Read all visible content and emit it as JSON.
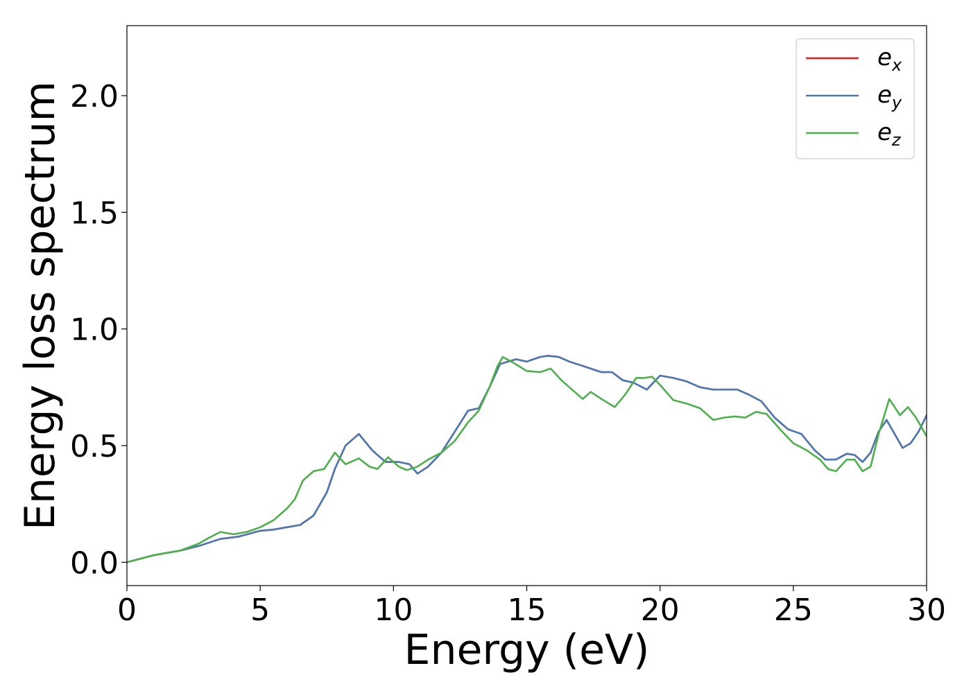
{
  "chart_data": {
    "type": "line",
    "xlabel": "Energy (eV)",
    "ylabel": "Energy loss spectrum",
    "xlim": [
      0,
      30
    ],
    "ylim": [
      -0.1,
      2.3
    ],
    "xticks": [
      0,
      5,
      10,
      15,
      20,
      25,
      30
    ],
    "xtick_labels": [
      "0",
      "5",
      "10",
      "15",
      "20",
      "25",
      "30"
    ],
    "yticks": [
      0.0,
      0.5,
      1.0,
      1.5,
      2.0
    ],
    "ytick_labels": [
      "0.0",
      "0.5",
      "1.0",
      "1.5",
      "2.0"
    ],
    "grid": false,
    "legend_position": "top-right",
    "series": [
      {
        "name": "e_x",
        "label_base": "e",
        "label_sub": "x",
        "color": "#e41a1c",
        "x": [
          0,
          1,
          2,
          2.7,
          3.5,
          4.2,
          5,
          5.5,
          6,
          6.5,
          7,
          7.5,
          7.8,
          8.2,
          8.7,
          9.2,
          9.7,
          10.2,
          10.6,
          10.9,
          11.3,
          11.8,
          12.3,
          12.8,
          13.2,
          13.6,
          14,
          14.3,
          14.6,
          15,
          15.5,
          15.8,
          16.2,
          16.6,
          17,
          17.4,
          17.8,
          18.2,
          18.6,
          19,
          19.5,
          20,
          20.5,
          21,
          21.5,
          22,
          22.5,
          22.9,
          23.3,
          23.8,
          24.3,
          24.8,
          25.3,
          25.8,
          26.2,
          26.6,
          27,
          27.3,
          27.6,
          27.9,
          28.2,
          28.5,
          28.8,
          29.1,
          29.4,
          29.7,
          30
        ],
        "y": [
          0,
          0.03,
          0.05,
          0.07,
          0.1,
          0.11,
          0.135,
          0.14,
          0.15,
          0.16,
          0.2,
          0.3,
          0.4,
          0.5,
          0.55,
          0.48,
          0.43,
          0.43,
          0.42,
          0.38,
          0.41,
          0.47,
          0.56,
          0.65,
          0.66,
          0.75,
          0.85,
          0.86,
          0.87,
          0.86,
          0.88,
          0.885,
          0.88,
          0.86,
          0.845,
          0.83,
          0.815,
          0.815,
          0.78,
          0.77,
          0.74,
          0.8,
          0.79,
          0.775,
          0.75,
          0.74,
          0.74,
          0.74,
          0.72,
          0.69,
          0.62,
          0.57,
          0.55,
          0.48,
          0.44,
          0.44,
          0.465,
          0.46,
          0.43,
          0.47,
          0.56,
          0.61,
          0.55,
          0.49,
          0.51,
          0.56,
          0.63
        ]
      },
      {
        "name": "e_y",
        "label_base": "e",
        "label_sub": "y",
        "color": "#4a7ab5",
        "x": [
          0,
          1,
          2,
          2.7,
          3.5,
          4.2,
          5,
          5.5,
          6,
          6.5,
          7,
          7.5,
          7.8,
          8.2,
          8.7,
          9.2,
          9.7,
          10.2,
          10.6,
          10.9,
          11.3,
          11.8,
          12.3,
          12.8,
          13.2,
          13.6,
          14,
          14.3,
          14.6,
          15,
          15.5,
          15.8,
          16.2,
          16.6,
          17,
          17.4,
          17.8,
          18.2,
          18.6,
          19,
          19.5,
          20,
          20.5,
          21,
          21.5,
          22,
          22.5,
          22.9,
          23.3,
          23.8,
          24.3,
          24.8,
          25.3,
          25.8,
          26.2,
          26.6,
          27,
          27.3,
          27.6,
          27.9,
          28.2,
          28.5,
          28.8,
          29.1,
          29.4,
          29.7,
          30
        ],
        "y": [
          0,
          0.03,
          0.05,
          0.07,
          0.1,
          0.11,
          0.135,
          0.14,
          0.15,
          0.16,
          0.2,
          0.3,
          0.4,
          0.5,
          0.55,
          0.48,
          0.43,
          0.43,
          0.42,
          0.38,
          0.41,
          0.47,
          0.56,
          0.65,
          0.66,
          0.75,
          0.85,
          0.86,
          0.87,
          0.86,
          0.88,
          0.885,
          0.88,
          0.86,
          0.845,
          0.83,
          0.815,
          0.815,
          0.78,
          0.77,
          0.74,
          0.8,
          0.79,
          0.775,
          0.75,
          0.74,
          0.74,
          0.74,
          0.72,
          0.69,
          0.62,
          0.57,
          0.55,
          0.48,
          0.44,
          0.44,
          0.465,
          0.46,
          0.43,
          0.47,
          0.56,
          0.61,
          0.55,
          0.49,
          0.51,
          0.56,
          0.63
        ]
      },
      {
        "name": "e_z",
        "label_base": "e",
        "label_sub": "z",
        "color": "#4daf4a",
        "x": [
          0,
          1,
          2,
          2.7,
          3,
          3.5,
          4,
          4.5,
          5,
          5.5,
          6,
          6.3,
          6.6,
          7,
          7.4,
          7.8,
          8.2,
          8.7,
          9.1,
          9.4,
          9.8,
          10.2,
          10.5,
          10.9,
          11.3,
          11.8,
          12.3,
          12.8,
          13.2,
          13.6,
          13.9,
          14.1,
          14.5,
          15,
          15.5,
          15.9,
          16.3,
          16.7,
          17.1,
          17.4,
          17.8,
          18.3,
          18.7,
          19.1,
          19.4,
          19.7,
          20,
          20.5,
          21,
          21.5,
          22,
          22.4,
          22.8,
          23.2,
          23.6,
          24,
          24.5,
          25,
          25.5,
          26,
          26.3,
          26.6,
          27,
          27.3,
          27.6,
          27.9,
          28.2,
          28.6,
          29,
          29.3,
          29.6,
          30
        ],
        "y": [
          0,
          0.03,
          0.05,
          0.08,
          0.1,
          0.13,
          0.12,
          0.13,
          0.15,
          0.18,
          0.23,
          0.27,
          0.35,
          0.39,
          0.4,
          0.47,
          0.42,
          0.445,
          0.41,
          0.4,
          0.45,
          0.41,
          0.395,
          0.41,
          0.44,
          0.47,
          0.52,
          0.6,
          0.65,
          0.75,
          0.84,
          0.88,
          0.855,
          0.82,
          0.815,
          0.83,
          0.78,
          0.74,
          0.7,
          0.73,
          0.7,
          0.665,
          0.72,
          0.79,
          0.79,
          0.795,
          0.76,
          0.695,
          0.68,
          0.66,
          0.61,
          0.62,
          0.625,
          0.62,
          0.645,
          0.635,
          0.57,
          0.51,
          0.48,
          0.44,
          0.4,
          0.39,
          0.44,
          0.44,
          0.39,
          0.41,
          0.55,
          0.7,
          0.63,
          0.665,
          0.62,
          0.54
        ]
      }
    ]
  }
}
